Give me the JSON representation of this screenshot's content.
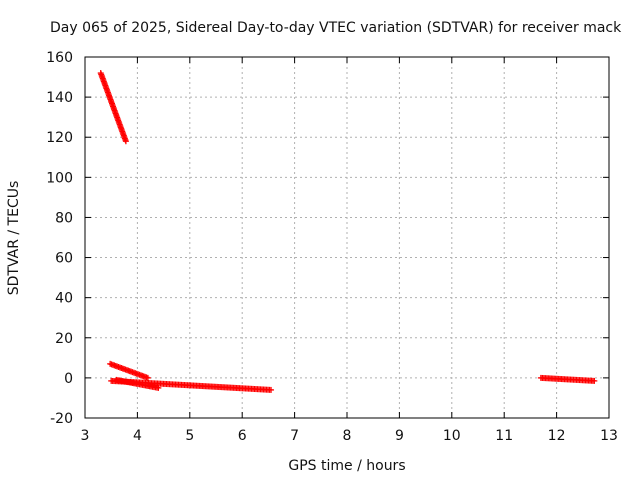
{
  "chart_data": {
    "type": "scatter",
    "title": "Day 065 of 2025, Sidereal Day-to-day VTEC variation (SDTVAR) for receiver mack",
    "xlabel": "GPS time / hours",
    "ylabel": "SDTVAR / TECUs",
    "xlim": [
      3,
      13
    ],
    "ylim": [
      -20,
      160
    ],
    "x_ticks": [
      "3",
      "4",
      "5",
      "6",
      "7",
      "8",
      "9",
      "10",
      "11",
      "12",
      "13"
    ],
    "y_ticks": [
      "160",
      "140",
      "120",
      "100",
      "80",
      "60",
      "40",
      "20",
      "0",
      "-20"
    ],
    "grid": true,
    "marker": "plus",
    "series_color": "#ff0000",
    "segments": [
      {
        "name": "early-high-arc",
        "x_start": 3.3,
        "x_end": 3.78,
        "y_start": 152,
        "y_end": 118
      },
      {
        "name": "upper-decay",
        "x_start": 3.48,
        "x_end": 4.2,
        "y_start": 7,
        "y_end": 0
      },
      {
        "name": "main-band",
        "x_start": 3.5,
        "x_end": 6.55,
        "y_start": -1.5,
        "y_end": -6
      },
      {
        "name": "lower-band",
        "x_start": 3.6,
        "x_end": 4.4,
        "y_start": -1,
        "y_end": -5
      },
      {
        "name": "late-band",
        "x_start": 11.7,
        "x_end": 12.72,
        "y_start": 0,
        "y_end": -1.5
      }
    ]
  }
}
